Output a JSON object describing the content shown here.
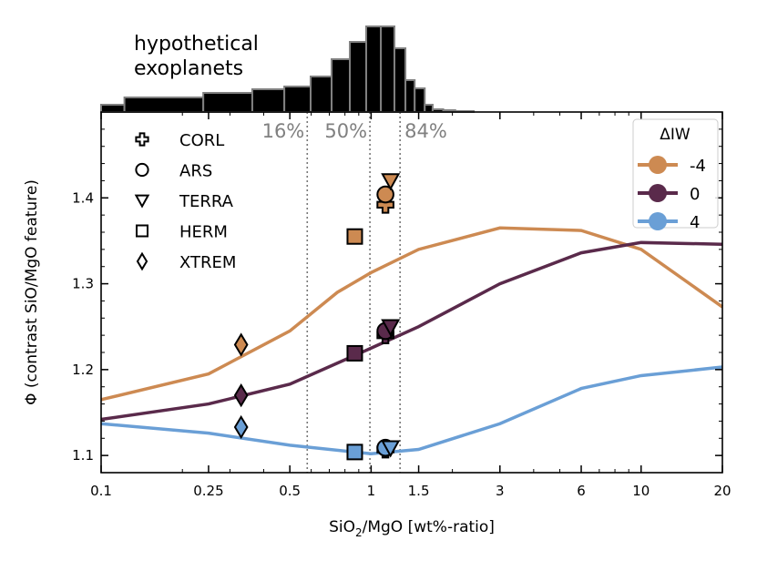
{
  "chart_data": {
    "type": "line",
    "xlabel_main": "SiO",
    "xlabel_sub": "2",
    "xlabel_mid": "/MgO [wt%-ratio]",
    "ylabel": "Φ (contrast SiO/MgO feature)",
    "xscale": "log",
    "xlim": [
      0.1,
      20
    ],
    "ylim": [
      1.08,
      1.5
    ],
    "xticks": [
      0.1,
      0.25,
      0.5,
      1,
      1.5,
      3,
      6,
      10,
      20
    ],
    "xtick_labels": [
      "0.1",
      "0.25",
      "0.5",
      "1",
      "1.5",
      "3",
      "6",
      "10",
      "20"
    ],
    "yticks": [
      1.1,
      1.2,
      1.3,
      1.4
    ],
    "ytick_labels": [
      "1.1",
      "1.2",
      "1.3",
      "1.4"
    ],
    "grid": false,
    "legend_title": "ΔIW",
    "legend_placement": "top-right",
    "series": [
      {
        "name": "-4",
        "color": "#CD8A52",
        "x": [
          0.1,
          0.25,
          0.5,
          0.75,
          1,
          1.5,
          3,
          6,
          10,
          20
        ],
        "y": [
          1.165,
          1.195,
          1.245,
          1.29,
          1.313,
          1.34,
          1.365,
          1.362,
          1.34,
          1.273
        ]
      },
      {
        "name": "0",
        "color": "#5A2A4B",
        "x": [
          0.1,
          0.25,
          0.5,
          1,
          1.5,
          3,
          6,
          10,
          20
        ],
        "y": [
          1.142,
          1.16,
          1.183,
          1.225,
          1.25,
          1.3,
          1.336,
          1.348,
          1.346
        ]
      },
      {
        "name": "4",
        "color": "#6A9FD6",
        "x": [
          0.1,
          0.25,
          0.5,
          1,
          1.5,
          3,
          6,
          10,
          20
        ],
        "y": [
          1.137,
          1.126,
          1.112,
          1.102,
          1.107,
          1.137,
          1.178,
          1.193,
          1.203
        ]
      }
    ],
    "planet_legend": [
      {
        "label": "CORL",
        "marker": "plus"
      },
      {
        "label": "ARS",
        "marker": "circle"
      },
      {
        "label": "TERRA",
        "marker": "triangle-down"
      },
      {
        "label": "HERM",
        "marker": "square"
      },
      {
        "label": "XTREM",
        "marker": "diamond"
      }
    ],
    "planets": [
      {
        "label": "XTREM",
        "marker": "diamond",
        "x": 0.33,
        "y": [
          1.229,
          1.17,
          1.133
        ]
      },
      {
        "label": "HERM",
        "marker": "square",
        "x": 0.87,
        "y": [
          1.355,
          1.219,
          1.104
        ]
      },
      {
        "label": "CORL",
        "marker": "plus",
        "x": 1.13,
        "y": [
          1.392,
          1.24,
          1.107
        ]
      },
      {
        "label": "ARS",
        "marker": "circle",
        "x": 1.13,
        "y": [
          1.404,
          1.245,
          1.109
        ]
      },
      {
        "label": "TERRA",
        "marker": "triangle-down",
        "x": 1.18,
        "y": [
          1.42,
          1.25,
          1.109
        ]
      }
    ],
    "percentiles": [
      {
        "label": "16%",
        "x": 0.58
      },
      {
        "label": "50%",
        "x": 0.99
      },
      {
        "label": "84%",
        "x": 1.28
      }
    ],
    "histogram": {
      "label_line1": "hypothetical",
      "label_line2": "exoplanets",
      "edges": [
        0.1,
        0.122,
        0.239,
        0.363,
        0.477,
        0.597,
        0.714,
        0.834,
        0.959,
        1.087,
        1.22,
        1.34,
        1.45,
        1.58,
        1.69,
        1.85,
        2.05,
        2.4
      ],
      "counts": [
        8,
        16,
        21,
        25,
        28,
        39,
        58,
        77,
        94,
        94,
        70,
        35,
        26,
        8,
        3,
        2,
        1
      ]
    }
  }
}
